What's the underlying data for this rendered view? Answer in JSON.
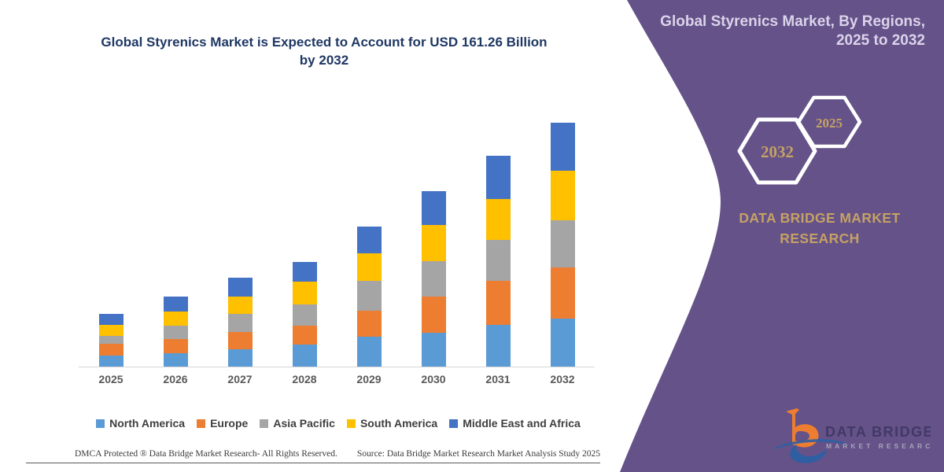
{
  "colors": {
    "panel_purple": "#645289",
    "title_navy": "#1F3864",
    "accent_gold": "#C6A164",
    "axis_line_gray": "#D6D6D6",
    "logo_orange": "#ED7D31",
    "logo_blue": "#2E5FA3"
  },
  "chart": {
    "title": "Global Styrenics Market is Expected to Account for USD 161.26 Billion by 2032"
  },
  "chart_data": {
    "type": "bar",
    "stacked": true,
    "title": "Global Styrenics Market is Expected to Account for USD 161.26 Billion by 2032",
    "categories": [
      "2025",
      "2026",
      "2027",
      "2028",
      "2029",
      "2030",
      "2031",
      "2032"
    ],
    "series": [
      {
        "name": "North America",
        "color": "#5B9BD5",
        "values": [
          7.4,
          9.0,
          11.3,
          14.4,
          19.9,
          22.5,
          27.4,
          31.7
        ]
      },
      {
        "name": "Europe",
        "color": "#ED7D31",
        "values": [
          7.5,
          9.2,
          11.8,
          12.5,
          17.0,
          23.9,
          29.1,
          33.8
        ]
      },
      {
        "name": "Asia Pacific",
        "color": "#A5A5A5",
        "values": [
          5.2,
          9.0,
          11.8,
          14.4,
          19.6,
          23.4,
          27.2,
          31.0
        ]
      },
      {
        "name": "South America",
        "color": "#FFC000",
        "values": [
          7.6,
          9.2,
          11.6,
          14.8,
          18.5,
          23.8,
          27.2,
          32.9
        ]
      },
      {
        "name": "Middle East and Africa",
        "color": "#4472C4",
        "values": [
          7.0,
          9.9,
          12.2,
          13.3,
          17.4,
          22.5,
          28.3,
          31.8
        ]
      }
    ],
    "highlight_total_2032": 161.26,
    "xlabel": "",
    "ylabel": "",
    "ylim": [
      0,
      170
    ],
    "gridlines": false,
    "legend_position": "bottom"
  },
  "panel": {
    "title": "Global Styrenics Market, By Regions, 2025 to 2032",
    "hexagons": [
      {
        "label": "2032"
      },
      {
        "label": "2025"
      }
    ],
    "brand": "DATA BRIDGE MARKET RESEARCH",
    "logo": {
      "line1": "DATA BRIDGE",
      "line2": "MARKET RESEARCH"
    }
  },
  "footer": {
    "left": "DMCA Protected ® Data Bridge Market Research-  All Rights Reserved.",
    "right": "Source: Data Bridge Market Research  Market Analysis Study 2025"
  }
}
